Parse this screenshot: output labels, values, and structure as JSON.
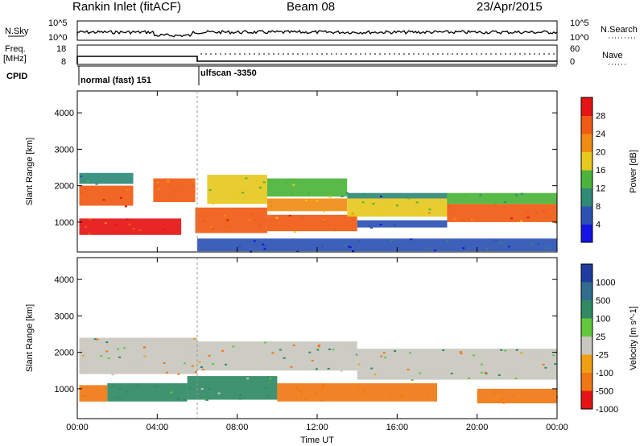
{
  "header": {
    "station": "Rankin Inlet (fitACF)",
    "beam": "Beam 08",
    "date": "23/Apr/2015"
  },
  "top_panels": {
    "nsky_label": "N.Sky",
    "nsearch_label": "N.Search",
    "nsky_ticks": [
      "10^5",
      "10^0"
    ],
    "nsearch_ticks": [
      "10^5",
      "10^0"
    ],
    "freq_label": "Freq.",
    "freq_unit": "[MHz]",
    "freq_ticks": [
      "18",
      "8"
    ],
    "nave_label": "Nave",
    "nave_ticks": [
      "60",
      "0"
    ],
    "cpid_label": "CPID",
    "cpid_modes": [
      {
        "name": "normal (fast) 151",
        "start_hour": 0
      },
      {
        "name": "ulfscan -3350",
        "start_hour": 6
      }
    ]
  },
  "x_axis": {
    "label": "Time UT",
    "range_hours": [
      0,
      24
    ],
    "tick_labels": [
      "00:00",
      "04:00",
      "08:00",
      "12:00",
      "16:00",
      "20:00",
      "00:00"
    ],
    "tick_hours": [
      0,
      4,
      8,
      12,
      16,
      20,
      24
    ]
  },
  "colors": {
    "gray": "#c8c8c0"
  },
  "chart_data": [
    {
      "type": "heatmap",
      "name": "power",
      "ylabel": "Slant Range [km]",
      "ylim": [
        180,
        4600
      ],
      "y_ticks": [
        1000,
        2000,
        3000,
        4000
      ],
      "colorbar_label": "Power [dB]",
      "colorbar_ticks": [
        4,
        8,
        12,
        16,
        20,
        24,
        28
      ],
      "colorbar_range": [
        0,
        32
      ],
      "colorbar_colors": [
        "#1414e6",
        "#2c52b4",
        "#2f8a78",
        "#4bb43a",
        "#e6c81e",
        "#f08c14",
        "#f05a14",
        "#e61414"
      ],
      "bands": [
        {
          "t0": 0.1,
          "t1": 5.2,
          "r0": 650,
          "r1": 1100,
          "value": 28
        },
        {
          "t0": 0.1,
          "t1": 2.8,
          "r0": 1450,
          "r1": 2000,
          "value": 26
        },
        {
          "t0": 0.1,
          "t1": 2.8,
          "r0": 2050,
          "r1": 2350,
          "value": 10
        },
        {
          "t0": 3.8,
          "t1": 5.9,
          "r0": 1550,
          "r1": 2200,
          "value": 24
        },
        {
          "t0": 5.9,
          "t1": 9.5,
          "r0": 700,
          "r1": 1400,
          "value": 26
        },
        {
          "t0": 6.5,
          "t1": 9.5,
          "r0": 1500,
          "r1": 2300,
          "value": 16
        },
        {
          "t0": 9.5,
          "t1": 14.0,
          "r0": 750,
          "r1": 1200,
          "value": 24
        },
        {
          "t0": 9.5,
          "t1": 13.5,
          "r0": 1300,
          "r1": 1650,
          "value": 20
        },
        {
          "t0": 9.5,
          "t1": 13.5,
          "r0": 1700,
          "r1": 2200,
          "value": 14
        },
        {
          "t0": 13.5,
          "t1": 18.5,
          "r0": 1150,
          "r1": 1650,
          "value": 18
        },
        {
          "t0": 13.5,
          "t1": 18.5,
          "r0": 1650,
          "r1": 1800,
          "value": 8
        },
        {
          "t0": 14.0,
          "t1": 18.5,
          "r0": 850,
          "r1": 1050,
          "value": 6
        },
        {
          "t0": 18.5,
          "t1": 24.0,
          "r0": 1000,
          "r1": 1500,
          "value": 24
        },
        {
          "t0": 18.5,
          "t1": 24.0,
          "r0": 1500,
          "r1": 1800,
          "value": 12
        },
        {
          "t0": 6.0,
          "t1": 24.0,
          "r0": 200,
          "r1": 550,
          "value": 6
        }
      ]
    },
    {
      "type": "heatmap",
      "name": "velocity",
      "ylabel": "Slant Range [km]",
      "ylim": [
        180,
        4600
      ],
      "y_ticks": [
        1000,
        2000,
        3000,
        4000
      ],
      "colorbar_label": "Velocity [m s^-1]",
      "colorbar_ticks": [
        1000,
        500,
        100,
        25,
        -25,
        -100,
        -500,
        -1000
      ],
      "colorbar_colors": [
        "#1e3ca0",
        "#2f6e8c",
        "#2f8a64",
        "#64c83c",
        "#c8c8c0",
        "#f0a014",
        "#f07814",
        "#e61414"
      ],
      "bands": [
        {
          "t0": 0.1,
          "t1": 6.0,
          "r0": 1400,
          "r1": 2400,
          "value": 0
        },
        {
          "t0": 0.1,
          "t1": 1.5,
          "r0": 650,
          "r1": 1100,
          "value": -300
        },
        {
          "t0": 1.5,
          "t1": 5.5,
          "r0": 650,
          "r1": 1150,
          "value": 200
        },
        {
          "t0": 5.5,
          "t1": 10.0,
          "r0": 700,
          "r1": 1350,
          "value": 200
        },
        {
          "t0": 6.0,
          "t1": 14.0,
          "r0": 1500,
          "r1": 2300,
          "value": 0
        },
        {
          "t0": 10.0,
          "t1": 18.0,
          "r0": 650,
          "r1": 1150,
          "value": -300
        },
        {
          "t0": 14.0,
          "t1": 24.0,
          "r0": 1250,
          "r1": 2100,
          "value": 0
        },
        {
          "t0": 20.0,
          "t1": 24.0,
          "r0": 600,
          "r1": 1000,
          "value": -300
        }
      ]
    }
  ]
}
